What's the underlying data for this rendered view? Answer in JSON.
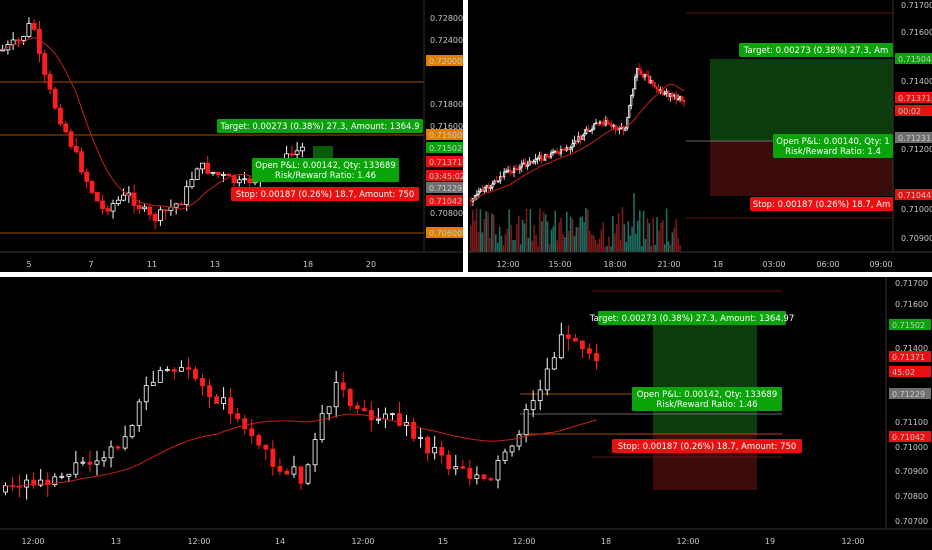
{
  "colors": {
    "bg": "#000000",
    "up": "#ffffff",
    "down": "#ff1e1e",
    "vol_up": "#1f6e63",
    "vol_down": "#7a1a1a",
    "ma": "#c81e1e",
    "level": "#d46a00",
    "target_box": "#0c3c0c",
    "stop_box": "#3c0c0c",
    "green_label": "#0aa30a",
    "red_label": "#e81010",
    "gray_label": "#707070",
    "separator": "#ffffff"
  },
  "panes": [
    {
      "id": "top-left",
      "price_axis": [
        "0.72800",
        "0.72400",
        "0.72000",
        "0.71800",
        "0.71600",
        "0.71500",
        "0.71502",
        "0.71371",
        "03:45:02",
        "0.71229",
        "0.71042",
        "0.70800",
        "0.70600"
      ],
      "time_axis": [
        "5",
        "7",
        "11",
        "13",
        "18",
        "20"
      ],
      "target_text": "Target: 0.00273 (0.38%) 27.3, Amount: 1364.9",
      "open_text_1": "Open P&L: 0.00142, Qty: 133689",
      "open_text_2": "Risk/Reward Ratio: 1.46",
      "stop_text": "Stop: 0.00187 (0.26%) 18.7, Amount: 750"
    },
    {
      "id": "top-right",
      "price_axis": [
        "0.71700",
        "0.71600",
        "0.71504",
        "0.71400",
        "0.71371",
        "00:02",
        "0.71231",
        "0.71200",
        "0.71044",
        "0.71000",
        "0.70900"
      ],
      "time_axis": [
        "12:00",
        "15:00",
        "18:00",
        "21:00",
        "18",
        "03:00",
        "06:00",
        "09:00"
      ],
      "target_text": "Target: 0.00273 (0.38%) 27.3, Am",
      "open_text_1": "Open P&L: 0.00140, Qty: 1",
      "open_text_2": "Risk/Reward Ratio: 1.4",
      "stop_text": "Stop: 0.00187 (0.26%) 18.7, Am"
    },
    {
      "id": "bottom",
      "price_axis": [
        "0.71700",
        "0.71600",
        "0.71502",
        "0.71400",
        "0.71371",
        "45:02",
        "0.71229",
        "0.71100",
        "0.71042",
        "0.71000",
        "0.70900",
        "0.70800",
        "0.70700"
      ],
      "time_axis": [
        "12:00",
        "13",
        "12:00",
        "14",
        "12:00",
        "15",
        "12:00",
        "18",
        "12:00",
        "19",
        "12:00"
      ],
      "target_text": "Target: 0.00273 (0.38%) 27.3, Amount: 1364.97",
      "open_text_1": "Open P&L: 0.00142, Qty: 133689",
      "open_text_2": "Risk/Reward Ratio: 1.46",
      "stop_text": "Stop: 0.00187 (0.26%) 18.7, Amount: 750"
    }
  ]
}
